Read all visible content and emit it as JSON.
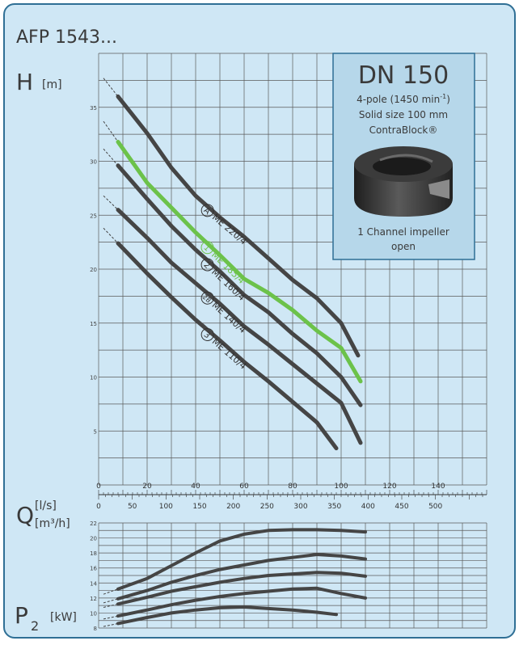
{
  "header": {
    "title": "AFP 1543..."
  },
  "panel": {
    "bg_color": "#cfe7f5",
    "border_color": "#2f6f95",
    "grid_color": "#5a5a5a"
  },
  "info_box": {
    "dn": "DN 150",
    "speed_pre": "4-pole (1450 min",
    "speed_sup": "-1",
    "speed_post": ")",
    "solid": "Solid size 100 mm",
    "brand": "ContraBlock®",
    "impeller_line1": "1 Channel impeller",
    "impeller_line2": "open",
    "bg_color": "#b6d7ea"
  },
  "colors": {
    "dark_curve": "#454545",
    "green_curve": "#6cc24a"
  },
  "chart_data": [
    {
      "type": "line",
      "ylabel": {
        "main": "H",
        "unit": "[m]"
      },
      "ylim": [
        0,
        40
      ],
      "y_ticks": [
        5,
        10,
        15,
        20,
        25,
        30,
        35
      ],
      "xlim_ls": [
        0,
        160
      ],
      "x_ticks_ls": [
        0,
        20,
        40,
        60,
        80,
        100,
        120,
        140
      ],
      "x_ticks_m3h": [
        0,
        50,
        100,
        150,
        200,
        250,
        300,
        350,
        400,
        450,
        500
      ],
      "xlabel": {
        "main": "Q",
        "unit_ls": "[l/s]",
        "unit_m3h": "[m³/h]"
      },
      "series": [
        {
          "name": "ME 220/4",
          "marker": "A",
          "color": "dark",
          "points": [
            [
              8,
              36
            ],
            [
              20,
              32.6
            ],
            [
              30,
              29.4
            ],
            [
              40,
              26.8
            ],
            [
              50,
              24.8
            ],
            [
              60,
              23
            ],
            [
              70,
              21
            ],
            [
              80,
              19
            ],
            [
              90,
              17.3
            ],
            [
              100,
              15
            ],
            [
              107,
              12
            ]
          ]
        },
        {
          "name": "ME 185/4",
          "marker": "1",
          "color": "green",
          "points": [
            [
              8,
              31.8
            ],
            [
              20,
              28
            ],
            [
              30,
              25.7
            ],
            [
              40,
              23.4
            ],
            [
              50,
              21.3
            ],
            [
              60,
              19.1
            ],
            [
              70,
              17.8
            ],
            [
              80,
              16.2
            ],
            [
              90,
              14.3
            ],
            [
              100,
              12.7
            ],
            [
              108,
              9.6
            ]
          ]
        },
        {
          "name": "ME 160/4",
          "marker": "2",
          "color": "dark",
          "points": [
            [
              8,
              29.6
            ],
            [
              20,
              26.5
            ],
            [
              30,
              24
            ],
            [
              40,
              21.8
            ],
            [
              50,
              19.8
            ],
            [
              60,
              17.6
            ],
            [
              70,
              16
            ],
            [
              80,
              14
            ],
            [
              90,
              12.2
            ],
            [
              100,
              10
            ],
            [
              108,
              7.4
            ]
          ]
        },
        {
          "name": "ME 140/4",
          "marker": "2B",
          "color": "dark",
          "points": [
            [
              8,
              25.5
            ],
            [
              20,
              22.9
            ],
            [
              30,
              20.6
            ],
            [
              40,
              18.7
            ],
            [
              50,
              16.8
            ],
            [
              60,
              14.7
            ],
            [
              70,
              13
            ],
            [
              80,
              11.2
            ],
            [
              90,
              9.4
            ],
            [
              100,
              7.6
            ],
            [
              108,
              3.9
            ]
          ]
        },
        {
          "name": "ME 110/4",
          "marker": "3",
          "color": "dark",
          "points": [
            [
              8,
              22.4
            ],
            [
              20,
              19.6
            ],
            [
              30,
              17.4
            ],
            [
              40,
              15.3
            ],
            [
              50,
              13.4
            ],
            [
              60,
              11.4
            ],
            [
              70,
              9.6
            ],
            [
              80,
              7.7
            ],
            [
              90,
              5.8
            ],
            [
              98,
              3.4
            ]
          ]
        }
      ]
    },
    {
      "type": "line",
      "ylabel": {
        "main": "P",
        "sub": "2",
        "unit": "[kW]"
      },
      "ylim": [
        8,
        22
      ],
      "y_ticks": [
        8,
        10,
        12,
        14,
        16,
        18,
        20,
        22
      ],
      "xlim_ls": [
        0,
        160
      ],
      "series": [
        {
          "marker": "A",
          "color": "dark",
          "points": [
            [
              8,
              13.2
            ],
            [
              20,
              14.6
            ],
            [
              30,
              16.3
            ],
            [
              40,
              18
            ],
            [
              50,
              19.6
            ],
            [
              60,
              20.5
            ],
            [
              70,
              21
            ],
            [
              80,
              21.1
            ],
            [
              90,
              21.1
            ],
            [
              100,
              21
            ],
            [
              110,
              20.8
            ]
          ]
        },
        {
          "marker": "1",
          "color": "dark",
          "points": [
            [
              8,
              11.9
            ],
            [
              20,
              13
            ],
            [
              30,
              14.1
            ],
            [
              40,
              15
            ],
            [
              50,
              15.8
            ],
            [
              60,
              16.4
            ],
            [
              70,
              17
            ],
            [
              80,
              17.4
            ],
            [
              90,
              17.8
            ],
            [
              100,
              17.6
            ],
            [
              110,
              17.2
            ]
          ]
        },
        {
          "marker": "2",
          "color": "dark",
          "points": [
            [
              8,
              11.2
            ],
            [
              20,
              12.1
            ],
            [
              30,
              12.9
            ],
            [
              40,
              13.5
            ],
            [
              50,
              14.1
            ],
            [
              60,
              14.6
            ],
            [
              70,
              15
            ],
            [
              80,
              15.2
            ],
            [
              90,
              15.4
            ],
            [
              100,
              15.3
            ],
            [
              110,
              14.9
            ]
          ]
        },
        {
          "marker": "2B",
          "color": "dark",
          "points": [
            [
              8,
              9.6
            ],
            [
              20,
              10.4
            ],
            [
              30,
              11.1
            ],
            [
              40,
              11.7
            ],
            [
              50,
              12.2
            ],
            [
              60,
              12.6
            ],
            [
              70,
              12.9
            ],
            [
              80,
              13.2
            ],
            [
              90,
              13.3
            ],
            [
              100,
              12.6
            ],
            [
              110,
              12
            ]
          ]
        },
        {
          "marker": "3",
          "color": "dark",
          "points": [
            [
              8,
              8.6
            ],
            [
              20,
              9.4
            ],
            [
              30,
              10
            ],
            [
              40,
              10.4
            ],
            [
              50,
              10.7
            ],
            [
              60,
              10.8
            ],
            [
              70,
              10.6
            ],
            [
              80,
              10.4
            ],
            [
              90,
              10.1
            ],
            [
              98,
              9.8
            ]
          ]
        }
      ]
    }
  ]
}
